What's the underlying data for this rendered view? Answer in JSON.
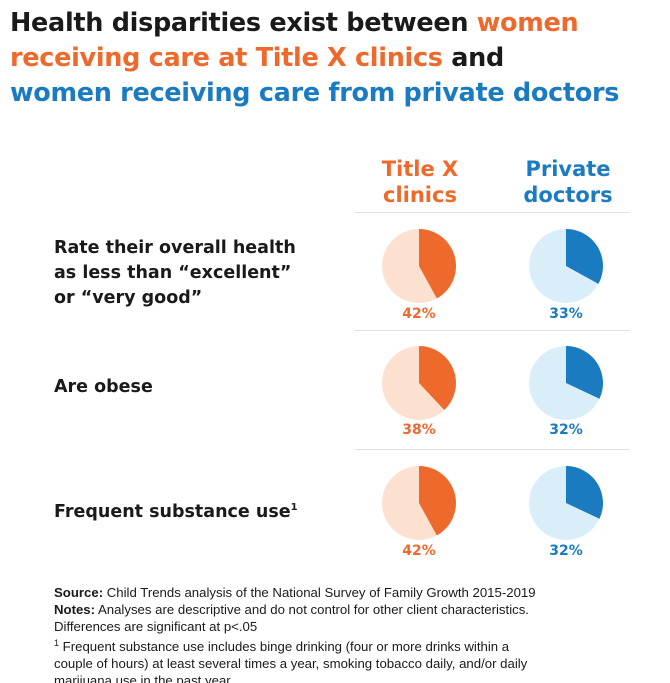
{
  "title": {
    "part1": "Health disparities exist between ",
    "part2": "women",
    "part3": "receiving care at Title X clinics",
    "part4": " and",
    "part5": "women receiving care from private doctors"
  },
  "colors": {
    "orange": "#ee6a2c",
    "orange_light": "#fce0d0",
    "blue": "#1b7bc1",
    "blue_light": "#daeefa"
  },
  "chart_data": {
    "type": "pie",
    "columns": [
      {
        "line1": "Title X",
        "line2": "clinics"
      },
      {
        "line1": "Private",
        "line2": "doctors"
      }
    ],
    "rows": [
      {
        "label_lines": [
          "Rate their overall health",
          "as less than “excellent”",
          "or “very good”"
        ],
        "sup": "",
        "values": [
          42,
          33
        ],
        "labels": [
          "42%",
          "33%"
        ]
      },
      {
        "label_lines": [
          "Are obese"
        ],
        "sup": "",
        "values": [
          38,
          32
        ],
        "labels": [
          "38%",
          "32%"
        ]
      },
      {
        "label_lines": [
          "Frequent substance use"
        ],
        "sup": "1",
        "values": [
          42,
          32
        ],
        "labels": [
          "42%",
          "32%"
        ]
      }
    ]
  },
  "notes": {
    "source_label": "Source:",
    "source_text": " Child Trends analysis of the National Survey of Family Growth 2015-2019",
    "notes_label": "Notes:",
    "notes_text": " Analyses are descriptive and do not control for other client characteristics.",
    "notes_line2": "Differences are significant at p<.05",
    "footnote_mark": "1",
    "footnote_line1": " Frequent substance use includes binge drinking (four or more drinks within a",
    "footnote_line2": "couple of hours) at least several times a year, smoking tobacco daily, and/or daily",
    "footnote_line3": "marijuana use in the past year."
  }
}
